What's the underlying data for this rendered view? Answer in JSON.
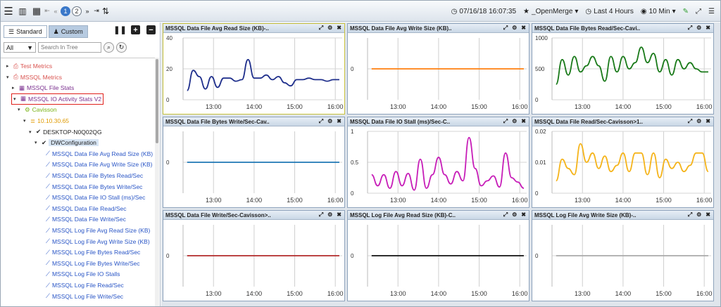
{
  "toolbar": {
    "page_current": "1",
    "page_next": "2",
    "datetime": "07/16/18 16:07:35",
    "favorite": "_OpenMerge",
    "range": "Last 4 Hours",
    "interval": "10 Min"
  },
  "sidebar": {
    "tab_standard": "Standard",
    "tab_custom": "Custom",
    "filter_value": "All",
    "search_placeholder": "Search In Tree",
    "tree": [
      {
        "label": "Test Metrics",
        "indent": 0,
        "color": "red",
        "arrow": "▸",
        "icon": "⎙"
      },
      {
        "label": "MSSQL Metrics",
        "indent": 0,
        "color": "red",
        "arrow": "▾",
        "icon": "⎙"
      },
      {
        "label": "MSSQL File Stats",
        "indent": 1,
        "color": "purple",
        "arrow": "▸",
        "icon": "▦"
      },
      {
        "label": "MSSQL IO Activity Stats V2",
        "indent": 1,
        "color": "purple",
        "arrow": "▾",
        "icon": "▦",
        "hl": true
      },
      {
        "label": "Cavisson",
        "indent": 2,
        "color": "green",
        "arrow": "▾",
        "icon": "⚙"
      },
      {
        "label": "10.10.30.65",
        "indent": 3,
        "color": "orange",
        "arrow": "▾",
        "icon": "≣"
      },
      {
        "label": "DESKTOP-N0Q02QG",
        "indent": 4,
        "color": "",
        "arrow": "▾",
        "icon": "✔"
      },
      {
        "label": "DWConfiguration",
        "indent": 5,
        "color": "",
        "arrow": "▾",
        "icon": "✔",
        "dwc": true
      },
      {
        "label": "MSSQL Data File Avg Read Size (KB)",
        "indent": 6,
        "color": "blue",
        "arrow": "",
        "icon": "⟋"
      },
      {
        "label": "MSSQL Data File Avg Write Size (KB)",
        "indent": 6,
        "color": "blue",
        "arrow": "",
        "icon": "⟋"
      },
      {
        "label": "MSSQL Data File Bytes Read/Sec",
        "indent": 6,
        "color": "blue",
        "arrow": "",
        "icon": "⟋"
      },
      {
        "label": "MSSQL Data File Bytes Write/Sec",
        "indent": 6,
        "color": "blue",
        "arrow": "",
        "icon": "⟋"
      },
      {
        "label": "MSSQL Data File IO Stall (ms)/Sec",
        "indent": 6,
        "color": "blue",
        "arrow": "",
        "icon": "⟋"
      },
      {
        "label": "MSSQL Data File Read/Sec",
        "indent": 6,
        "color": "blue",
        "arrow": "",
        "icon": "⟋"
      },
      {
        "label": "MSSQL Data File Write/Sec",
        "indent": 6,
        "color": "blue",
        "arrow": "",
        "icon": "⟋"
      },
      {
        "label": "MSSQL Log File Avg Read Size (KB)",
        "indent": 6,
        "color": "blue",
        "arrow": "",
        "icon": "⟋"
      },
      {
        "label": "MSSQL Log File Avg Write Size (KB)",
        "indent": 6,
        "color": "blue",
        "arrow": "",
        "icon": "⟋"
      },
      {
        "label": "MSSQL Log File Bytes Read/Sec",
        "indent": 6,
        "color": "blue",
        "arrow": "",
        "icon": "⟋"
      },
      {
        "label": "MSSQL Log File Bytes Write/Sec",
        "indent": 6,
        "color": "blue",
        "arrow": "",
        "icon": "⟋"
      },
      {
        "label": "MSSQL Log File IO Stalls",
        "indent": 6,
        "color": "blue",
        "arrow": "",
        "icon": "⟋"
      },
      {
        "label": "MSSQL Log File Read/Sec",
        "indent": 6,
        "color": "blue",
        "arrow": "",
        "icon": "⟋"
      },
      {
        "label": "MSSQL Log File Write/Sec",
        "indent": 6,
        "color": "blue",
        "arrow": "",
        "icon": "⟋"
      }
    ]
  },
  "chart_data": [
    {
      "type": "line",
      "title": "MSSQL Data File Avg Read Size (KB)-..",
      "color": "#1f2f8c",
      "yticks": [
        "0",
        "20",
        "40"
      ],
      "ylim": [
        0,
        40
      ],
      "xlim": [
        12.25,
        16.17
      ],
      "xticks": [
        {
          "x": 13,
          "label": "13:00"
        },
        {
          "x": 14,
          "label": "14:00"
        },
        {
          "x": 15,
          "label": "15:00"
        },
        {
          "x": 16,
          "label": "16:00"
        }
      ],
      "series": [
        {
          "x": [
            12.35,
            12.5,
            12.65,
            12.8,
            12.95,
            13.1,
            13.25,
            13.4,
            13.55,
            13.7,
            13.85,
            14.0,
            14.15,
            14.3,
            14.45,
            14.6,
            14.75,
            14.9,
            15.05,
            15.2,
            15.35,
            15.5,
            15.65,
            15.8,
            15.95,
            16.1
          ],
          "y": [
            6,
            19,
            15,
            7,
            15,
            8,
            14,
            14,
            12,
            13,
            26,
            14,
            14,
            16,
            13,
            15,
            11,
            9,
            13,
            13,
            14,
            13,
            13,
            12,
            13,
            13
          ]
        }
      ]
    },
    {
      "type": "line",
      "title": "MSSQL Data File Avg Write Size (KB)..",
      "color": "#ff7f0e",
      "yticks": [
        "0"
      ],
      "ylim": [
        -1,
        1
      ],
      "xlim": [
        12.25,
        16.17
      ],
      "xticks": [
        {
          "x": 13,
          "label": "13:00"
        },
        {
          "x": 14,
          "label": "14:00"
        },
        {
          "x": 15,
          "label": "15:00"
        },
        {
          "x": 16,
          "label": "16:00"
        }
      ],
      "series": [
        {
          "x": [
            12.35,
            16.1
          ],
          "y": [
            0,
            0
          ]
        }
      ]
    },
    {
      "type": "line",
      "title": "MSSQL Data File Bytes Read/Sec-Cavi..",
      "color": "#1a7a1a",
      "yticks": [
        "0",
        "500",
        "1000"
      ],
      "ylim": [
        0,
        1000
      ],
      "xlim": [
        12.25,
        16.17
      ],
      "xticks": [
        {
          "x": 13,
          "label": "13:00"
        },
        {
          "x": 14,
          "label": "14:00"
        },
        {
          "x": 15,
          "label": "15:00"
        },
        {
          "x": 16,
          "label": "16:00"
        }
      ],
      "series": [
        {
          "x": [
            12.35,
            12.5,
            12.65,
            12.8,
            12.95,
            13.1,
            13.25,
            13.4,
            13.55,
            13.7,
            13.85,
            14.0,
            14.15,
            14.3,
            14.45,
            14.6,
            14.75,
            14.9,
            15.05,
            15.2,
            15.35,
            15.5,
            15.65,
            15.8,
            15.95,
            16.1
          ],
          "y": [
            250,
            650,
            400,
            700,
            450,
            550,
            700,
            550,
            300,
            700,
            450,
            700,
            500,
            600,
            850,
            600,
            750,
            450,
            650,
            400,
            650,
            500,
            600,
            500,
            450,
            450
          ]
        }
      ]
    },
    {
      "type": "line",
      "title": "MSSQL Data File Bytes Write/Sec-Cav..",
      "color": "#1f77b4",
      "yticks": [
        "0"
      ],
      "ylim": [
        -1,
        1
      ],
      "xlim": [
        12.25,
        16.17
      ],
      "xticks": [
        {
          "x": 13,
          "label": "13:00"
        },
        {
          "x": 14,
          "label": "14:00"
        },
        {
          "x": 15,
          "label": "15:00"
        },
        {
          "x": 16,
          "label": "16:00"
        }
      ],
      "series": [
        {
          "x": [
            12.35,
            16.1
          ],
          "y": [
            0,
            0
          ]
        }
      ]
    },
    {
      "type": "line",
      "title": "MSSQL Data File IO Stall (ms)/Sec-C..",
      "color": "#c71eb8",
      "yticks": [
        "0",
        "0.5",
        "1"
      ],
      "ylim": [
        0,
        1
      ],
      "xlim": [
        12.25,
        16.17
      ],
      "xticks": [
        {
          "x": 13,
          "label": "13:00"
        },
        {
          "x": 14,
          "label": "14:00"
        },
        {
          "x": 15,
          "label": "15:00"
        },
        {
          "x": 16,
          "label": "16:00"
        }
      ],
      "series": [
        {
          "x": [
            12.35,
            12.5,
            12.65,
            12.8,
            12.95,
            13.1,
            13.25,
            13.4,
            13.55,
            13.7,
            13.85,
            14.0,
            14.15,
            14.3,
            14.45,
            14.6,
            14.75,
            14.9,
            15.05,
            15.2,
            15.35,
            15.5,
            15.65,
            15.8,
            15.95,
            16.1
          ],
          "y": [
            0.3,
            0.12,
            0.3,
            0.08,
            0.35,
            0.12,
            0.32,
            0.05,
            0.55,
            0.08,
            0.3,
            0.58,
            0.3,
            0.15,
            0.35,
            0.2,
            0.9,
            0.4,
            0.12,
            0.2,
            0.28,
            0.1,
            0.65,
            0.25,
            0.18,
            0.08
          ]
        }
      ]
    },
    {
      "type": "line",
      "title": "MSSQL Data File Read/Sec-Cavisson>1..",
      "color": "#f5b41b",
      "yticks": [
        "0",
        "0.01",
        "0.02"
      ],
      "ylim": [
        0,
        0.02
      ],
      "xlim": [
        12.25,
        16.17
      ],
      "xticks": [
        {
          "x": 13,
          "label": "13:00"
        },
        {
          "x": 14,
          "label": "14:00"
        },
        {
          "x": 15,
          "label": "15:00"
        },
        {
          "x": 16,
          "label": "16:00"
        }
      ],
      "series": [
        {
          "x": [
            12.35,
            12.5,
            12.65,
            12.8,
            12.95,
            13.1,
            13.25,
            13.4,
            13.55,
            13.7,
            13.85,
            14.0,
            14.15,
            14.3,
            14.45,
            14.6,
            14.75,
            14.9,
            15.05,
            15.2,
            15.35,
            15.5,
            15.65,
            15.8,
            15.95,
            16.1
          ],
          "y": [
            0.004,
            0.011,
            0.008,
            0.006,
            0.016,
            0.01,
            0.013,
            0.008,
            0.012,
            0.007,
            0.009,
            0.013,
            0.007,
            0.013,
            0.013,
            0.006,
            0.013,
            0.005,
            0.011,
            0.008,
            0.01,
            0.007,
            0.009,
            0.013,
            0.013,
            0.007
          ]
        }
      ]
    },
    {
      "type": "line",
      "title": "MSSQL Data File Write/Sec-Cavisson>..",
      "color": "#b22a2a",
      "yticks": [
        "0"
      ],
      "ylim": [
        -1,
        1
      ],
      "xlim": [
        12.25,
        16.17
      ],
      "xticks": [
        {
          "x": 13,
          "label": "13:00"
        },
        {
          "x": 14,
          "label": "14:00"
        },
        {
          "x": 15,
          "label": "15:00"
        },
        {
          "x": 16,
          "label": "16:00"
        }
      ],
      "series": [
        {
          "x": [
            12.35,
            16.1
          ],
          "y": [
            0,
            0
          ]
        }
      ]
    },
    {
      "type": "line",
      "title": "MSSQL Log File Avg Read Size (KB)-C..",
      "color": "#111111",
      "yticks": [
        "0"
      ],
      "ylim": [
        -1,
        1
      ],
      "xlim": [
        12.25,
        16.17
      ],
      "xticks": [
        {
          "x": 13,
          "label": "13:00"
        },
        {
          "x": 14,
          "label": "14:00"
        },
        {
          "x": 15,
          "label": "15:00"
        },
        {
          "x": 16,
          "label": "16:00"
        }
      ],
      "series": [
        {
          "x": [
            12.35,
            16.1
          ],
          "y": [
            0,
            0
          ]
        }
      ]
    },
    {
      "type": "line",
      "title": "MSSQL Log File Avg Write Size (KB)-..",
      "color": "#aaaaaa",
      "yticks": [
        "0"
      ],
      "ylim": [
        -1,
        1
      ],
      "xlim": [
        12.25,
        16.17
      ],
      "xticks": [
        {
          "x": 13,
          "label": "13:00"
        },
        {
          "x": 14,
          "label": "14:00"
        },
        {
          "x": 15,
          "label": "15:00"
        },
        {
          "x": 16,
          "label": "16:00"
        }
      ],
      "series": [
        {
          "x": [
            12.35,
            16.1
          ],
          "y": [
            0,
            0
          ]
        }
      ]
    }
  ]
}
